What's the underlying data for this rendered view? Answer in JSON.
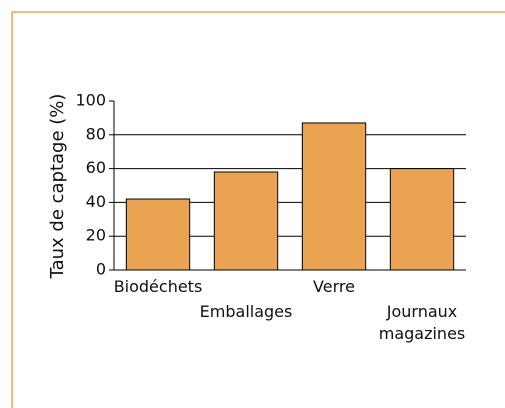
{
  "chart_data": {
    "type": "bar",
    "y_label": "Taux de captage (%)",
    "categories": [
      "Biodéchets",
      "Emballages",
      "Verre",
      "Journaux magazines"
    ],
    "values": [
      42,
      58,
      87,
      60
    ],
    "color": "#e9a352",
    "ylim": [
      0,
      100
    ],
    "yticks": [
      0,
      20,
      40,
      60,
      80,
      100
    ],
    "grid": true
  }
}
